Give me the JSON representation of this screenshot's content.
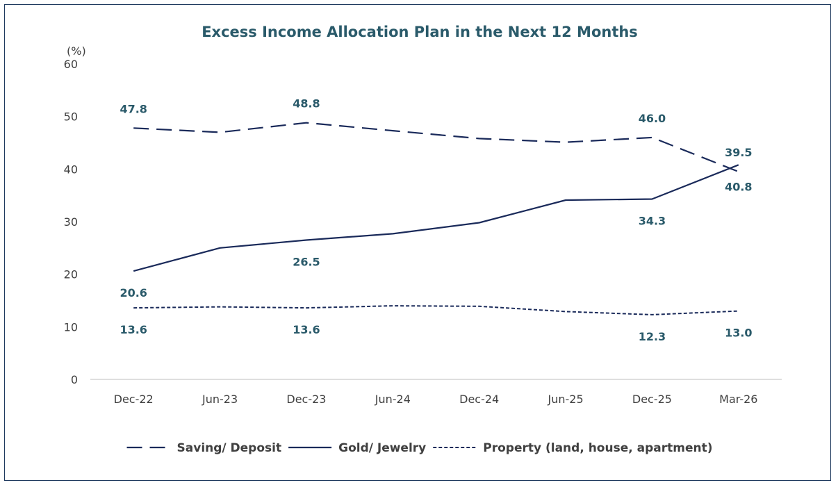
{
  "chart_data": {
    "type": "line",
    "title": "Excess Income Allocation Plan in the Next 12 Months",
    "unit_label": "(%)",
    "categories": [
      "Dec-22",
      "Jun-23",
      "Dec-23",
      "Jun-24",
      "Dec-24",
      "Jun-25",
      "Dec-25",
      "Mar-26"
    ],
    "ylim": [
      0,
      60
    ],
    "yticks": [
      0,
      10,
      20,
      30,
      40,
      50,
      60
    ],
    "grid": false,
    "legend_position": "bottom",
    "line_color": "#1a2a5a",
    "label_color": "#2a5a6a",
    "series": [
      {
        "name": "Saving/ Deposit",
        "dash": "dashed",
        "values": [
          47.8,
          47.0,
          48.8,
          47.3,
          45.8,
          45.1,
          46.0,
          39.5
        ],
        "labels": [
          {
            "index": 0,
            "text": "47.8",
            "place": "above"
          },
          {
            "index": 2,
            "text": "48.8",
            "place": "above"
          },
          {
            "index": 6,
            "text": "46.0",
            "place": "above"
          },
          {
            "index": 7,
            "text": "39.5",
            "place": "above"
          }
        ]
      },
      {
        "name": "Gold/ Jewelry",
        "dash": "solid",
        "values": [
          20.6,
          25.0,
          26.5,
          27.7,
          29.8,
          34.1,
          34.3,
          40.8
        ],
        "labels": [
          {
            "index": 0,
            "text": "20.6",
            "place": "below"
          },
          {
            "index": 2,
            "text": "26.5",
            "place": "below"
          },
          {
            "index": 6,
            "text": "34.3",
            "place": "below"
          },
          {
            "index": 7,
            "text": "40.8",
            "place": "below"
          }
        ]
      },
      {
        "name": "Property (land, house, apartment)",
        "dash": "dotted",
        "values": [
          13.6,
          13.8,
          13.6,
          14.0,
          13.9,
          12.9,
          12.3,
          13.0
        ],
        "labels": [
          {
            "index": 0,
            "text": "13.6",
            "place": "below"
          },
          {
            "index": 2,
            "text": "13.6",
            "place": "below"
          },
          {
            "index": 6,
            "text": "12.3",
            "place": "below"
          },
          {
            "index": 7,
            "text": "13.0",
            "place": "below"
          }
        ]
      }
    ]
  }
}
